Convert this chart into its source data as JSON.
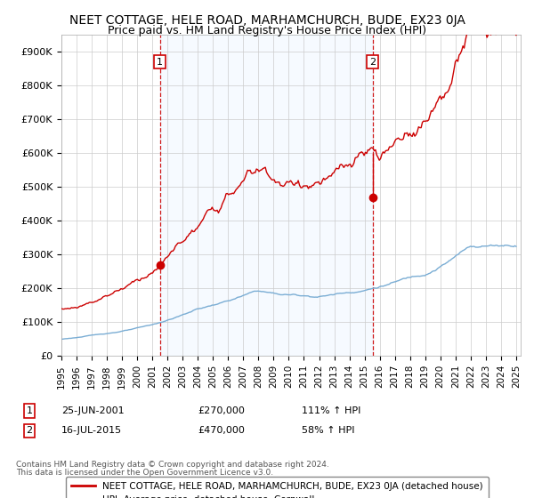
{
  "title": "NEET COTTAGE, HELE ROAD, MARHAMCHURCH, BUDE, EX23 0JA",
  "subtitle": "Price paid vs. HM Land Registry's House Price Index (HPI)",
  "title_fontsize": 10,
  "subtitle_fontsize": 9,
  "ylim": [
    0,
    950000
  ],
  "yticks": [
    0,
    100000,
    200000,
    300000,
    400000,
    500000,
    600000,
    700000,
    800000,
    900000
  ],
  "ytick_labels": [
    "£0",
    "£100K",
    "£200K",
    "£300K",
    "£400K",
    "£500K",
    "£600K",
    "£700K",
    "£800K",
    "£900K"
  ],
  "property_color": "#cc0000",
  "hpi_color": "#7aadd4",
  "shade_color": "#ddeeff",
  "grid_color": "#cccccc",
  "bg_color": "#ffffff",
  "t1_x": 2001.5,
  "t1_y": 270000,
  "t2_x": 2015.54,
  "t2_y": 470000,
  "transaction1": {
    "date": "25-JUN-2001",
    "price": "270,000",
    "pct": "111%",
    "label": "1"
  },
  "transaction2": {
    "date": "16-JUL-2015",
    "price": "470,000",
    "pct": "58%",
    "label": "2"
  },
  "legend_property": "NEET COTTAGE, HELE ROAD, MARHAMCHURCH, BUDE, EX23 0JA (detached house)",
  "legend_hpi": "HPI: Average price, detached house, Cornwall",
  "footer1": "Contains HM Land Registry data © Crown copyright and database right 2024.",
  "footer2": "This data is licensed under the Open Government Licence v3.0.",
  "xlim_start": 1995,
  "xlim_end": 2025.3
}
